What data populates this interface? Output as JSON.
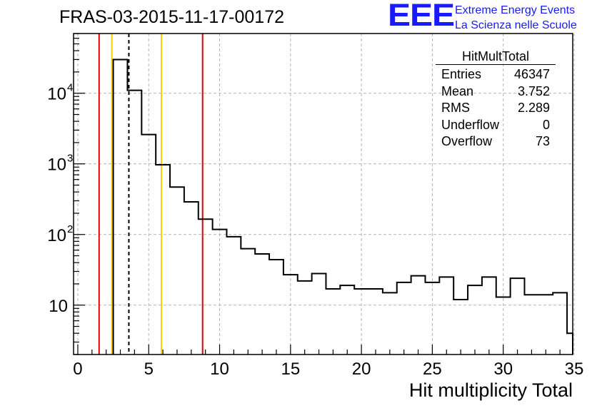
{
  "chart_data": {
    "type": "histogram",
    "title": "FRAS-03-2015-11-17-00172",
    "xlabel": "Hit multiplicity Total",
    "ylabel": "",
    "xlim": [
      -0.3,
      34.9
    ],
    "ylim": [
      2,
      70000
    ],
    "yscale": "log",
    "grid": true,
    "x_ticks": [
      0,
      5,
      10,
      15,
      20,
      25,
      30,
      35
    ],
    "y_ticks": [
      {
        "value": 10,
        "base": "10",
        "exp": ""
      },
      {
        "value": 100,
        "base": "10",
        "exp": "2"
      },
      {
        "value": 1000,
        "base": "10",
        "exp": "3"
      },
      {
        "value": 10000,
        "base": "10",
        "exp": "4"
      }
    ],
    "bin_width": 1,
    "bins": [
      {
        "low": 2.5,
        "count": 30000
      },
      {
        "low": 3.5,
        "count": 11000
      },
      {
        "low": 4.5,
        "count": 2600
      },
      {
        "low": 5.5,
        "count": 970
      },
      {
        "low": 6.5,
        "count": 470
      },
      {
        "low": 7.5,
        "count": 290
      },
      {
        "low": 8.5,
        "count": 165
      },
      {
        "low": 9.5,
        "count": 118
      },
      {
        "low": 10.5,
        "count": 93
      },
      {
        "low": 11.5,
        "count": 63
      },
      {
        "low": 12.5,
        "count": 53
      },
      {
        "low": 13.5,
        "count": 44
      },
      {
        "low": 14.5,
        "count": 27
      },
      {
        "low": 15.5,
        "count": 22
      },
      {
        "low": 16.5,
        "count": 28
      },
      {
        "low": 17.5,
        "count": 17
      },
      {
        "low": 18.5,
        "count": 19
      },
      {
        "low": 19.5,
        "count": 17
      },
      {
        "low": 20.5,
        "count": 17
      },
      {
        "low": 21.5,
        "count": 15
      },
      {
        "low": 22.5,
        "count": 21
      },
      {
        "low": 23.5,
        "count": 26
      },
      {
        "low": 24.5,
        "count": 21
      },
      {
        "low": 25.5,
        "count": 25
      },
      {
        "low": 26.5,
        "count": 12
      },
      {
        "low": 27.5,
        "count": 19
      },
      {
        "low": 28.5,
        "count": 25
      },
      {
        "low": 29.5,
        "count": 13
      },
      {
        "low": 30.5,
        "count": 24
      },
      {
        "low": 31.5,
        "count": 14
      },
      {
        "low": 32.5,
        "count": 14
      },
      {
        "low": 33.5,
        "count": 15
      },
      {
        "low": 34.5,
        "count": 4
      }
    ],
    "vertical_lines": [
      {
        "x": 1.5,
        "color": "#dd0000",
        "style": "solid"
      },
      {
        "x": 2.4,
        "color": "#ffcc00",
        "style": "solid"
      },
      {
        "x": 3.6,
        "color": "#000000",
        "style": "dashed"
      },
      {
        "x": 5.9,
        "color": "#ffcc00",
        "style": "solid"
      },
      {
        "x": 8.8,
        "color": "#dd0000",
        "style": "solid"
      }
    ]
  },
  "stats_box": {
    "title": "HitMultTotal",
    "rows": [
      {
        "label": "Entries",
        "value": "46347"
      },
      {
        "label": "Mean",
        "value": "3.752"
      },
      {
        "label": "RMS",
        "value": "2.289"
      },
      {
        "label": "Underflow",
        "value": "0"
      },
      {
        "label": "Overflow",
        "value": "73"
      }
    ]
  },
  "logo": {
    "mark": "EEE",
    "line1": "Extreme Energy Events",
    "line2": "La Scienza nelle Scuole",
    "color": "#1a1aff"
  }
}
